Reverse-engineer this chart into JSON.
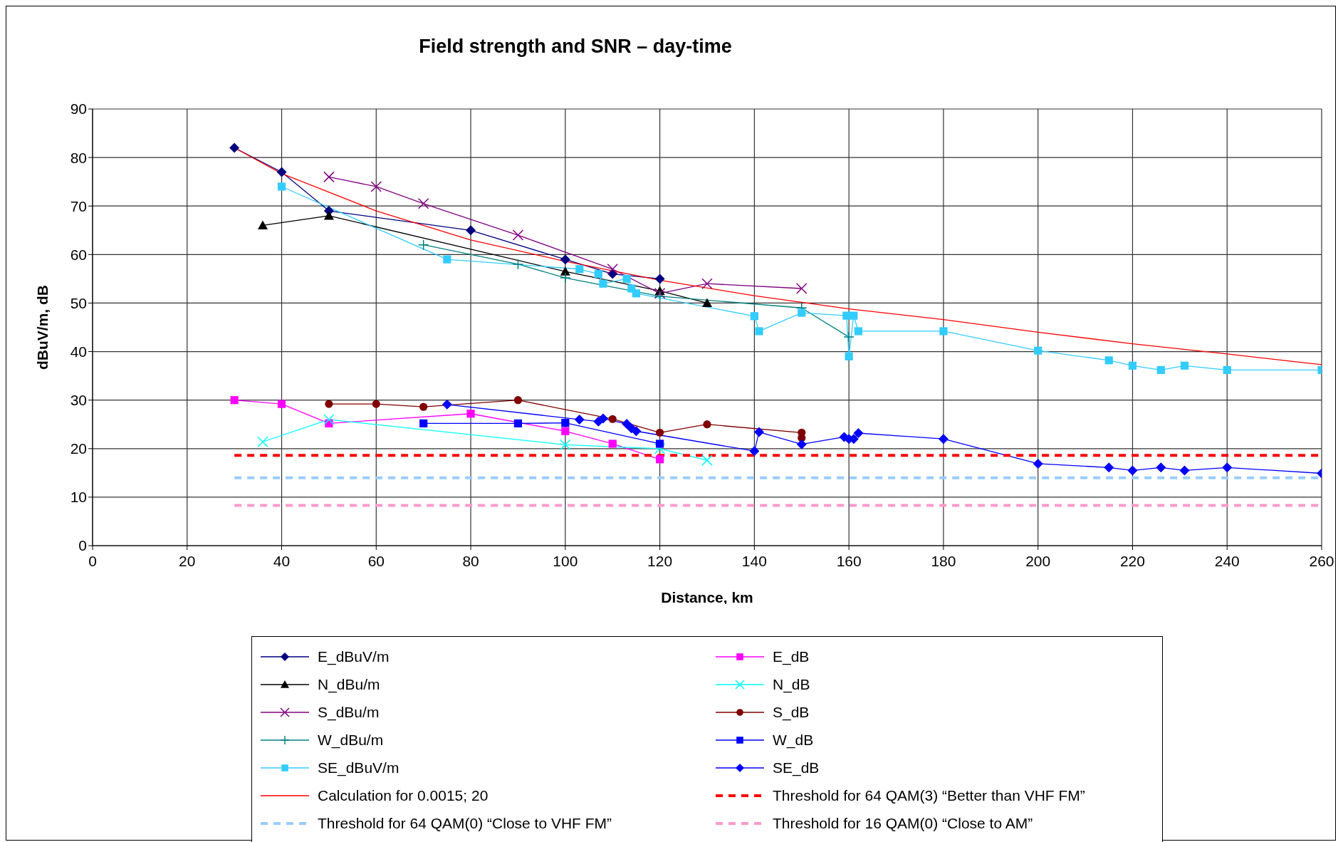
{
  "chart_data": {
    "type": "line",
    "title": "Field strength and SNR – day-time",
    "xlabel": "Distance, km",
    "ylabel": "dBuV/m, dB",
    "xlim": [
      0,
      260
    ],
    "xticks": [
      0,
      20,
      40,
      60,
      80,
      100,
      120,
      140,
      160,
      180,
      200,
      220,
      240,
      260
    ],
    "ylim": [
      0,
      90
    ],
    "yticks": [
      0,
      10,
      20,
      30,
      40,
      50,
      60,
      70,
      80,
      90
    ],
    "grid": true,
    "legend": "bottom",
    "series": [
      {
        "name": "E_dBuV/m",
        "color": "#000080",
        "marker": "diamond",
        "x": [
          30,
          40,
          50,
          80,
          100,
          110,
          120
        ],
        "values": [
          82,
          77,
          69,
          65,
          59,
          56,
          55
        ]
      },
      {
        "name": "N_dBu/m",
        "color": "#000000",
        "marker": "triangle",
        "x": [
          36,
          50,
          100,
          120,
          130
        ],
        "values": [
          66,
          68,
          56.5,
          52.5,
          50
        ]
      },
      {
        "name": "S_dBu/m",
        "color": "#800080",
        "marker": "cross",
        "x": [
          50,
          60,
          70,
          90,
          110,
          120,
          130,
          150
        ],
        "values": [
          76,
          74,
          70.5,
          64,
          57,
          52,
          54,
          53
        ]
      },
      {
        "name": "W_dBu/m",
        "color": "#008080",
        "marker": "plus",
        "x": [
          70,
          90,
          100,
          120,
          150,
          160
        ],
        "values": [
          62,
          58,
          55.2,
          51.4,
          49,
          43
        ]
      },
      {
        "name": "SE_dBuV/m",
        "color": "#33ccff",
        "marker": "square",
        "x": [
          40,
          75,
          103,
          107,
          108,
          113,
          114,
          115,
          140,
          141,
          150,
          159.5,
          160,
          161,
          162,
          180,
          200,
          215,
          220,
          226,
          231,
          240,
          260
        ],
        "values": [
          74,
          59,
          57,
          56,
          54,
          55,
          53,
          52,
          47.3,
          44.2,
          48,
          47.4,
          39,
          47.4,
          44.2,
          44.2,
          40.2,
          38.2,
          37.1,
          36.2,
          37.1,
          36.2,
          36.2
        ]
      },
      {
        "name": "Calculation for 0.0015; 20",
        "color": "#ff0000",
        "marker": "none",
        "x": [
          30,
          40,
          60,
          80,
          100,
          120,
          140,
          160,
          180,
          200,
          220,
          240,
          260
        ],
        "values": [
          82,
          76.7,
          69,
          63,
          58.6,
          54.7,
          51.5,
          48.8,
          46.6,
          44,
          41.6,
          39.5,
          37.3
        ]
      },
      {
        "name": "Threshold for 64 QAM(0) “Close to VHF FM”",
        "color": "#99ccff",
        "marker": "none",
        "line_style": "dashed",
        "x": [
          30,
          260
        ],
        "values": [
          14,
          14
        ]
      },
      {
        "name": "E_dB",
        "color": "#ff00ff",
        "marker": "square",
        "x": [
          30,
          40,
          50,
          80,
          100,
          110,
          120
        ],
        "values": [
          30,
          29.2,
          25.2,
          27.2,
          23.6,
          21,
          17.8
        ]
      },
      {
        "name": "N_dB",
        "color": "#00ffff",
        "marker": "cross",
        "x": [
          36,
          50,
          100,
          120,
          130
        ],
        "values": [
          21.4,
          26,
          20.8,
          20,
          17.6
        ]
      },
      {
        "name": "S_dB",
        "color": "#800000",
        "marker": "circle",
        "x": [
          50,
          60,
          70,
          90,
          110,
          120,
          130,
          150,
          150
        ],
        "values": [
          29.2,
          29.2,
          28.6,
          30,
          26.1,
          23.3,
          25,
          23.3,
          22.2
        ]
      },
      {
        "name": "W_dB",
        "color": "#0000ff",
        "marker": "square",
        "x": [
          70,
          90,
          100,
          120
        ],
        "values": [
          25.2,
          25.2,
          25.3,
          21
        ]
      },
      {
        "name": "SE_dB",
        "color": "#0000ff",
        "marker": "diamond",
        "x": [
          75,
          103,
          107,
          108,
          113,
          114,
          115,
          140,
          141,
          150,
          159,
          160,
          161,
          162,
          180,
          200,
          215,
          220,
          226,
          231,
          240,
          260
        ],
        "values": [
          29.1,
          26,
          25.6,
          26.2,
          25.1,
          24.2,
          23.6,
          19.5,
          23.4,
          20.9,
          22.4,
          22,
          22,
          23.2,
          22,
          16.9,
          16.1,
          15.5,
          16.1,
          15.5,
          16.1,
          14.9
        ]
      },
      {
        "name": "Threshold for 64 QAM(3) “Better than VHF FM”",
        "color": "#ff0000",
        "marker": "none",
        "line_style": "dashed",
        "x": [
          30,
          260
        ],
        "values": [
          18.6,
          18.6
        ]
      },
      {
        "name": "Threshold for 16 QAM(0) “Close to AM”",
        "color": "#ff99cc",
        "marker": "none",
        "line_style": "dashed",
        "x": [
          30,
          260
        ],
        "values": [
          8.3,
          8.3
        ]
      }
    ]
  }
}
